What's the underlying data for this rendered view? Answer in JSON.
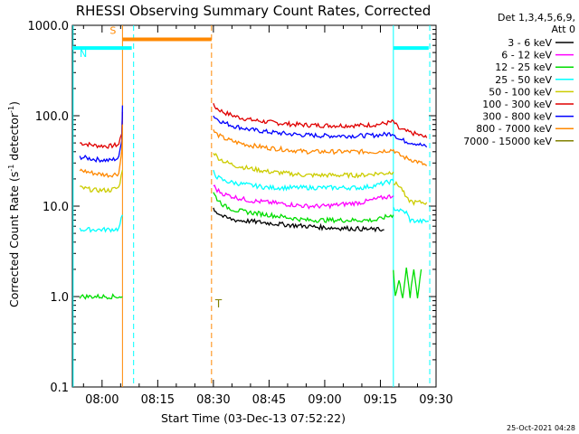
{
  "chart_data": {
    "type": "line",
    "title": "RHESSI Observing Summary Count Rates, Corrected",
    "xlabel": "Start Time (03-Dec-13 07:52:22)",
    "ylabel_main": "Corrected Count Rate (s",
    "ylabel_exp1": "-1",
    "ylabel_mid": " detector",
    "ylabel_exp2": "-1",
    "ylabel_end": ")",
    "x_range_min": [
      472,
      570
    ],
    "y_scale": "log",
    "ylim": [
      0.1,
      1000
    ],
    "x_ticks": [
      {
        "label": "08:00",
        "t": 480
      },
      {
        "label": "08:15",
        "t": 495
      },
      {
        "label": "08:30",
        "t": 510
      },
      {
        "label": "08:45",
        "t": 525
      },
      {
        "label": "09:00",
        "t": 540
      },
      {
        "label": "09:15",
        "t": 555
      },
      {
        "label": "09:30",
        "t": 570
      }
    ],
    "y_ticks": [
      {
        "label": "1000.0",
        "v": 1000
      },
      {
        "label": "100.0",
        "v": 100
      },
      {
        "label": "10.0",
        "v": 10
      },
      {
        "label": "1.0",
        "v": 1
      },
      {
        "label": "0.1",
        "v": 0.1
      }
    ],
    "legend": {
      "header1": "Det 1,3,4,5,6,9,",
      "header2": "Att 0",
      "entries": [
        {
          "label": "3 - 6 keV",
          "color": "#000000"
        },
        {
          "label": "6 - 12 keV",
          "color": "#ff00ff"
        },
        {
          "label": "12 - 25 keV",
          "color": "#00dd00"
        },
        {
          "label": "25 - 50 keV",
          "color": "#00ffff"
        },
        {
          "label": "50 - 100 keV",
          "color": "#cccc00"
        },
        {
          "label": "100 - 300 keV",
          "color": "#e00000"
        },
        {
          "label": "300 - 800 keV",
          "color": "#0000ff"
        },
        {
          "label": "800 - 7000 keV",
          "color": "#ff8800"
        },
        {
          "label": "7000 - 15000 keV",
          "color": "#808000"
        }
      ]
    },
    "flags": [
      {
        "label": "S",
        "t_start": 485.5,
        "t_end": 509.5,
        "level": 700,
        "color": "#ff8800"
      },
      {
        "label": "N",
        "t_start": 472,
        "t_end": 488,
        "level": 560,
        "color": "#00ffff"
      },
      {
        "label": "",
        "t_start": 558.5,
        "t_end": 568,
        "level": 560,
        "color": "#00ffff"
      }
    ],
    "vertical_lines": [
      {
        "t": 472.2,
        "color": "#00ffff",
        "dashed": false
      },
      {
        "t": 485.5,
        "color": "#ff8800",
        "dashed": false
      },
      {
        "t": 488.5,
        "color": "#00ffff",
        "dashed": true
      },
      {
        "t": 509.5,
        "color": "#ff8800",
        "dashed": true
      },
      {
        "t": 558.5,
        "color": "#00ffff",
        "dashed": false
      },
      {
        "t": 568.3,
        "color": "#00ffff",
        "dashed": true
      }
    ],
    "attenuator_marker": {
      "label": "T",
      "t": 510.5,
      "v": 0.95,
      "color": "#808000"
    },
    "series": [
      {
        "name": "100 - 300 keV",
        "color": "#e00000",
        "segments": [
          {
            "t": [
              474,
              478,
              482,
              484.5,
              485.3,
              485.5
            ],
            "v": [
              50,
              47,
              46,
              48,
              65,
              110
            ]
          },
          {
            "t": [
              510,
              511,
              513,
              516,
              520,
              525,
              530,
              535,
              540,
              545,
              550,
              554,
              556,
              558.5,
              560,
              562,
              565,
              567.5
            ],
            "v": [
              130,
              120,
              108,
              98,
              90,
              85,
              81,
              79,
              78,
              78,
              78,
              80,
              82,
              86,
              72,
              67,
              62,
              57
            ]
          }
        ]
      },
      {
        "name": "300 - 800 keV",
        "color": "#0000ff",
        "segments": [
          {
            "t": [
              474,
              478,
              482,
              484.5,
              485.3,
              485.5
            ],
            "v": [
              35,
              33,
              32,
              34,
              55,
              130
            ]
          },
          {
            "t": [
              510,
              511,
              513,
              516,
              520,
              525,
              530,
              535,
              540,
              545,
              550,
              554,
              556,
              558.5,
              560,
              562,
              565,
              567.5
            ],
            "v": [
              100,
              92,
              83,
              76,
              70,
              66,
              63,
              61,
              60,
              60,
              60,
              61,
              62,
              64,
              55,
              52,
              49,
              45
            ]
          }
        ]
      },
      {
        "name": "800 - 7000 keV",
        "color": "#ff8800",
        "segments": [
          {
            "t": [
              474,
              478,
              482,
              484.5,
              485.3,
              485.5
            ],
            "v": [
              25,
              23,
              22,
              23,
              40,
              80
            ]
          },
          {
            "t": [
              510,
              511,
              513,
              516,
              520,
              525,
              530,
              535,
              540,
              545,
              550,
              554,
              556,
              558.5,
              560,
              562,
              565,
              567.5
            ],
            "v": [
              68,
              62,
              56,
              51,
              47,
              44,
              42,
              40,
              40,
              40,
              40,
              40,
              41,
              42,
              37,
              34,
              31,
              28
            ]
          }
        ]
      },
      {
        "name": "50 - 100 keV",
        "color": "#cccc00",
        "segments": [
          {
            "t": [
              474,
              478,
              482,
              484.5,
              485.5
            ],
            "v": [
              16,
              15,
              15,
              16,
              25
            ]
          },
          {
            "t": [
              510,
              511,
              513,
              516,
              520,
              525,
              530,
              535,
              540,
              545,
              550,
              554,
              556,
              558.5
            ],
            "v": [
              40,
              35,
              31,
              28,
              26,
              24,
              23,
              22,
              22,
              22,
              22,
              23,
              23,
              24
            ]
          },
          {
            "t": [
              558.5,
              560,
              561,
              562,
              564,
              566,
              567.5
            ],
            "v": [
              18,
              17,
              15,
              12,
              11,
              11,
              11
            ]
          }
        ]
      },
      {
        "name": "25 - 50 keV",
        "color": "#00ffff",
        "segments": [
          {
            "t": [
              474,
              478,
              482,
              484.5,
              485.5
            ],
            "v": [
              5.5,
              5.5,
              5.5,
              5.6,
              8
            ]
          },
          {
            "t": [
              510,
              511,
              513,
              516,
              520,
              525,
              530,
              535,
              540,
              545,
              550,
              554,
              556,
              558.5
            ],
            "v": [
              24,
              21,
              19,
              18,
              17,
              16,
              16,
              16,
              16,
              16,
              16,
              17,
              18,
              19
            ]
          },
          {
            "t": [
              558.5,
              560,
              562,
              563,
              565,
              568
            ],
            "v": [
              9.5,
              9,
              8.5,
              7,
              6.8,
              6.8
            ]
          }
        ]
      },
      {
        "name": "6 - 12 keV",
        "color": "#ff00ff",
        "segments": [
          {
            "t": [
              510,
              511,
              513,
              516,
              520,
              525,
              530,
              535,
              540,
              545,
              550,
              554,
              556,
              558.5
            ],
            "v": [
              17,
              15,
              13.5,
              12.5,
              11.5,
              11,
              10.5,
              10,
              10,
              10.5,
              11,
              12,
              12.5,
              13
            ]
          }
        ]
      },
      {
        "name": "12 - 25 keV",
        "color": "#00dd00",
        "segments": [
          {
            "t": [
              474,
              477,
              480,
              484,
              485.5
            ],
            "v": [
              1,
              1,
              1,
              1,
              1
            ]
          },
          {
            "t": [
              510,
              511,
              513,
              516,
              520,
              525,
              530,
              535,
              540,
              545,
              550,
              554,
              556,
              558.5
            ],
            "v": [
              14,
              12,
              10,
              9,
              8.5,
              8,
              7.5,
              7,
              7,
              7,
              7,
              7,
              7.5,
              8
            ]
          },
          {
            "t": [
              558.5,
              559,
              560,
              561,
              562,
              563,
              564,
              565,
              566
            ],
            "v": [
              2.0,
              1.0,
              1.5,
              1.0,
              2.0,
              1.0,
              2.0,
              1.0,
              2.0
            ]
          }
        ]
      },
      {
        "name": "3 - 6 keV",
        "color": "#000000",
        "segments": [
          {
            "t": [
              510,
              511,
              513,
              516,
              520,
              525,
              530,
              535,
              540,
              545,
              550,
              554,
              556
            ],
            "v": [
              9.5,
              8.5,
              7.5,
              7,
              6.8,
              6.5,
              6.2,
              6,
              5.8,
              5.7,
              5.6,
              5.5,
              5.5
            ]
          }
        ]
      }
    ]
  },
  "footer": {
    "timestamp": "25-Oct-2021 04:28"
  }
}
